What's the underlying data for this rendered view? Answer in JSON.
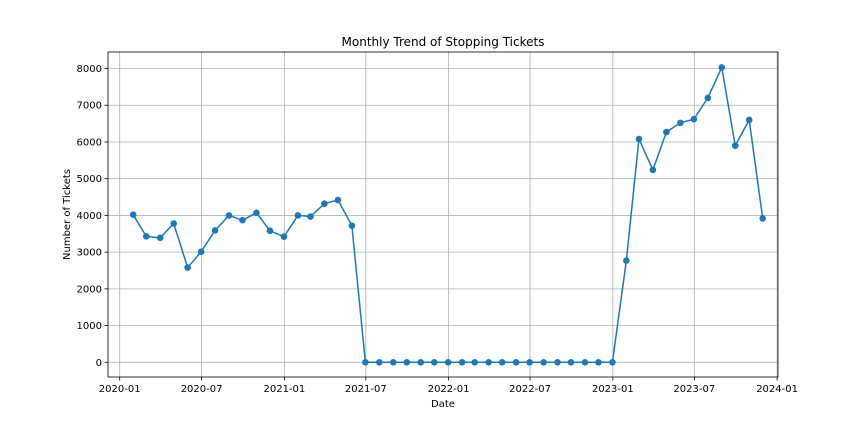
{
  "chart_data": {
    "type": "line",
    "title": "Monthly Trend of Stopping Tickets",
    "xlabel": "Date",
    "ylabel": "Number of Tickets",
    "xlim": [
      "2019-12-06",
      "2024-01-03"
    ],
    "ylim": [
      -400,
      8450
    ],
    "grid": true,
    "line_color": "#1f77b4",
    "x_ticks": [
      {
        "date": "2020-01-01",
        "label": "2020-01"
      },
      {
        "date": "2020-07-01",
        "label": "2020-07"
      },
      {
        "date": "2021-01-01",
        "label": "2021-01"
      },
      {
        "date": "2021-07-01",
        "label": "2021-07"
      },
      {
        "date": "2022-01-01",
        "label": "2022-01"
      },
      {
        "date": "2022-07-01",
        "label": "2022-07"
      },
      {
        "date": "2023-01-01",
        "label": "2023-01"
      },
      {
        "date": "2023-07-01",
        "label": "2023-07"
      },
      {
        "date": "2024-01-01",
        "label": "2024-01"
      }
    ],
    "y_ticks": [
      {
        "value": 0,
        "label": "0"
      },
      {
        "value": 1000,
        "label": "1000"
      },
      {
        "value": 2000,
        "label": "2000"
      },
      {
        "value": 3000,
        "label": "3000"
      },
      {
        "value": 4000,
        "label": "4000"
      },
      {
        "value": 5000,
        "label": "5000"
      },
      {
        "value": 6000,
        "label": "6000"
      },
      {
        "value": 7000,
        "label": "7000"
      },
      {
        "value": 8000,
        "label": "8000"
      }
    ],
    "series": [
      {
        "x": [
          "2020-01-31",
          "2020-02-29",
          "2020-03-31",
          "2020-04-30",
          "2020-05-31",
          "2020-06-30",
          "2020-07-31",
          "2020-08-31",
          "2020-09-30",
          "2020-10-31",
          "2020-11-30",
          "2020-12-31",
          "2021-01-31",
          "2021-02-28",
          "2021-03-31",
          "2021-04-30",
          "2021-05-31",
          "2021-06-30",
          "2021-07-31",
          "2021-08-31",
          "2021-09-30",
          "2021-10-31",
          "2021-11-30",
          "2021-12-31",
          "2022-01-31",
          "2022-02-28",
          "2022-03-31",
          "2022-04-30",
          "2022-05-31",
          "2022-06-30",
          "2022-07-31",
          "2022-08-31",
          "2022-09-30",
          "2022-10-31",
          "2022-11-30",
          "2022-12-31",
          "2023-01-31",
          "2023-02-28",
          "2023-03-31",
          "2023-04-30",
          "2023-05-31",
          "2023-06-30",
          "2023-07-31",
          "2023-08-31",
          "2023-09-30",
          "2023-10-31",
          "2023-11-30"
        ],
        "y": [
          4020,
          3430,
          3390,
          3780,
          2580,
          3010,
          3590,
          4000,
          3870,
          4070,
          3580,
          3420,
          4000,
          3970,
          4320,
          4420,
          3720,
          0,
          0,
          0,
          0,
          0,
          0,
          0,
          0,
          0,
          0,
          0,
          0,
          0,
          0,
          0,
          0,
          0,
          0,
          0,
          2770,
          6080,
          5240,
          6270,
          6520,
          6620,
          7200,
          8030,
          5900,
          6600,
          3920
        ]
      }
    ]
  }
}
